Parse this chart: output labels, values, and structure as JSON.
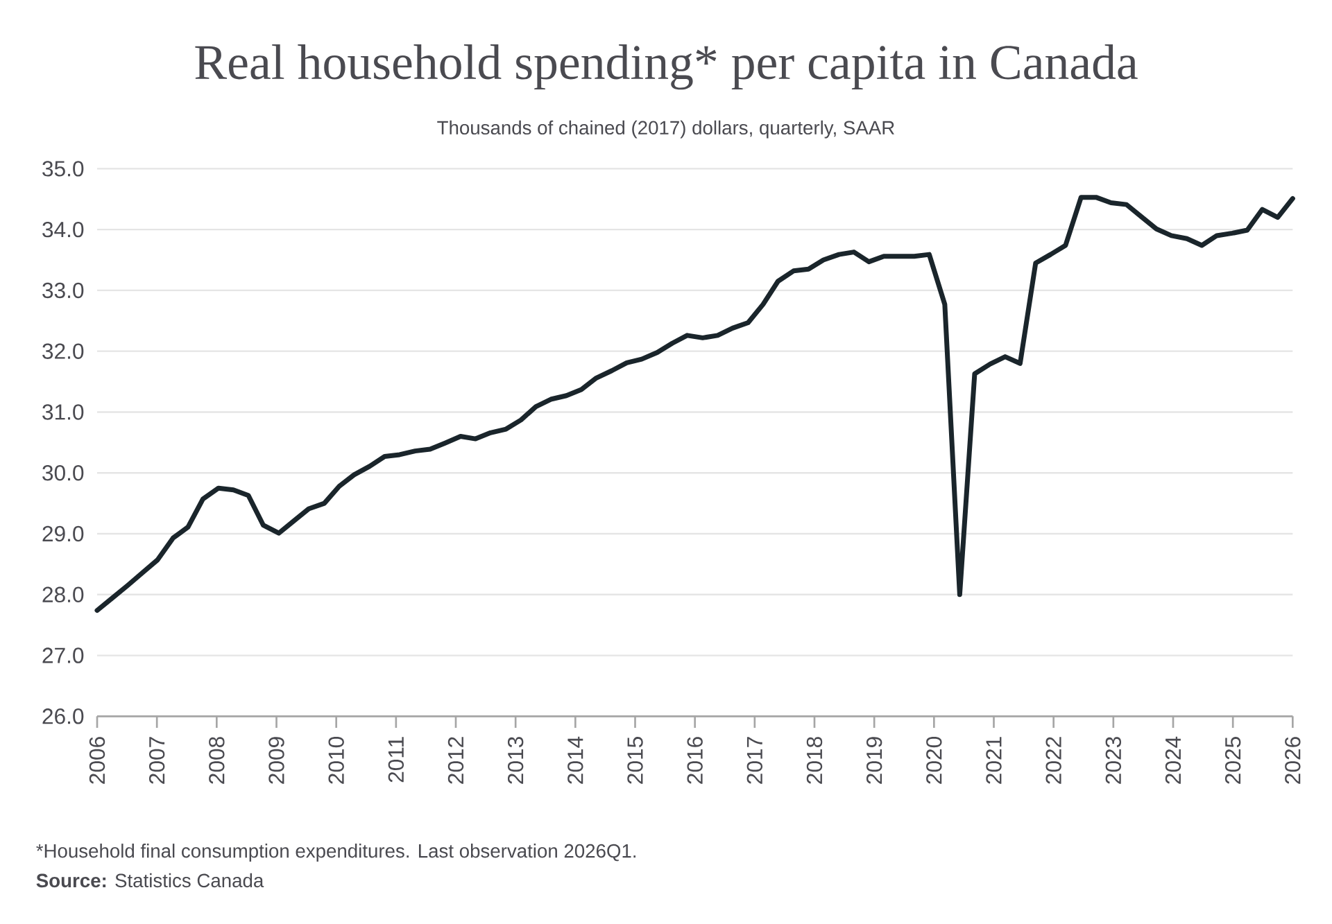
{
  "chart_data": {
    "type": "line",
    "title": "Real household spending* per capita in Canada",
    "subtitle": "Thousands of chained (2017) dollars, quarterly, SAAR",
    "annotations": [
      "*Household final consumption expenditures. Last observation 2026Q1.",
      "**Source:** Statistics Canada"
    ],
    "x": [
      2006.0,
      2006.25,
      2006.51,
      2006.76,
      2007.01,
      2007.27,
      2007.52,
      2007.77,
      2008.03,
      2008.28,
      2008.53,
      2008.78,
      2009.04,
      2009.29,
      2009.54,
      2009.8,
      2010.05,
      2010.3,
      2010.56,
      2010.81,
      2011.06,
      2011.32,
      2011.57,
      2011.82,
      2012.08,
      2012.33,
      2012.58,
      2012.84,
      2013.09,
      2013.34,
      2013.59,
      2013.85,
      2014.1,
      2014.35,
      2014.61,
      2014.86,
      2015.11,
      2015.37,
      2015.62,
      2015.87,
      2016.13,
      2016.38,
      2016.63,
      2016.89,
      2017.14,
      2017.39,
      2017.65,
      2017.9,
      2018.15,
      2018.41,
      2018.66,
      2018.91,
      2019.16,
      2019.42,
      2019.67,
      2019.92,
      2020.18,
      2020.43,
      2020.68,
      2020.94,
      2021.19,
      2021.44,
      2021.7,
      2021.95,
      2022.2,
      2022.46,
      2022.71,
      2022.96,
      2023.22,
      2023.47,
      2023.72,
      2023.97,
      2024.23,
      2024.48,
      2024.73,
      2024.99,
      2025.24,
      2025.49,
      2025.75,
      2026.0
    ],
    "series": [
      {
        "color": "#1a252b",
        "values": [
          27.74,
          27.94,
          28.15,
          28.36,
          28.57,
          28.93,
          29.11,
          29.57,
          29.75,
          29.72,
          29.63,
          29.14,
          29.01,
          29.21,
          29.41,
          29.5,
          29.78,
          29.97,
          30.11,
          30.27,
          30.3,
          30.36,
          30.39,
          30.49,
          30.6,
          30.56,
          30.66,
          30.72,
          30.87,
          31.09,
          31.21,
          31.27,
          31.37,
          31.56,
          31.68,
          31.81,
          31.87,
          31.98,
          32.13,
          32.26,
          32.22,
          32.26,
          32.38,
          32.47,
          32.77,
          33.15,
          33.32,
          33.35,
          33.5,
          33.59,
          33.63,
          33.47,
          33.56,
          33.56,
          33.56,
          33.59,
          32.77,
          28.0,
          31.63,
          31.79,
          31.91,
          31.8,
          33.45,
          33.59,
          33.74,
          34.53,
          34.53,
          34.44,
          34.41,
          34.21,
          34.01,
          33.9,
          33.85,
          33.74,
          33.9,
          33.94,
          33.99,
          34.33,
          34.2,
          34.51
        ]
      }
    ],
    "xlim": [
      2006,
      2026
    ],
    "xticks": [
      2006,
      2007,
      2008,
      2009,
      2010,
      2011,
      2012,
      2013,
      2014,
      2015,
      2016,
      2017,
      2018,
      2019,
      2020,
      2021,
      2022,
      2023,
      2024,
      2025,
      2026
    ],
    "ylim": [
      26,
      35
    ],
    "yticks": [
      {
        "value": 26,
        "label": "26.0"
      },
      {
        "value": 27,
        "label": "27.0"
      },
      {
        "value": 28,
        "label": "28.0"
      },
      {
        "value": 29,
        "label": "29.0"
      },
      {
        "value": 30,
        "label": "30.0"
      },
      {
        "value": 31,
        "label": "31.0"
      },
      {
        "value": 32,
        "label": "32.0"
      },
      {
        "value": 33,
        "label": "33.0"
      },
      {
        "value": 34,
        "label": "34.0"
      },
      {
        "value": 35,
        "label": "35.0"
      }
    ],
    "grid": "y",
    "marker": "none",
    "line_style": "solid"
  }
}
